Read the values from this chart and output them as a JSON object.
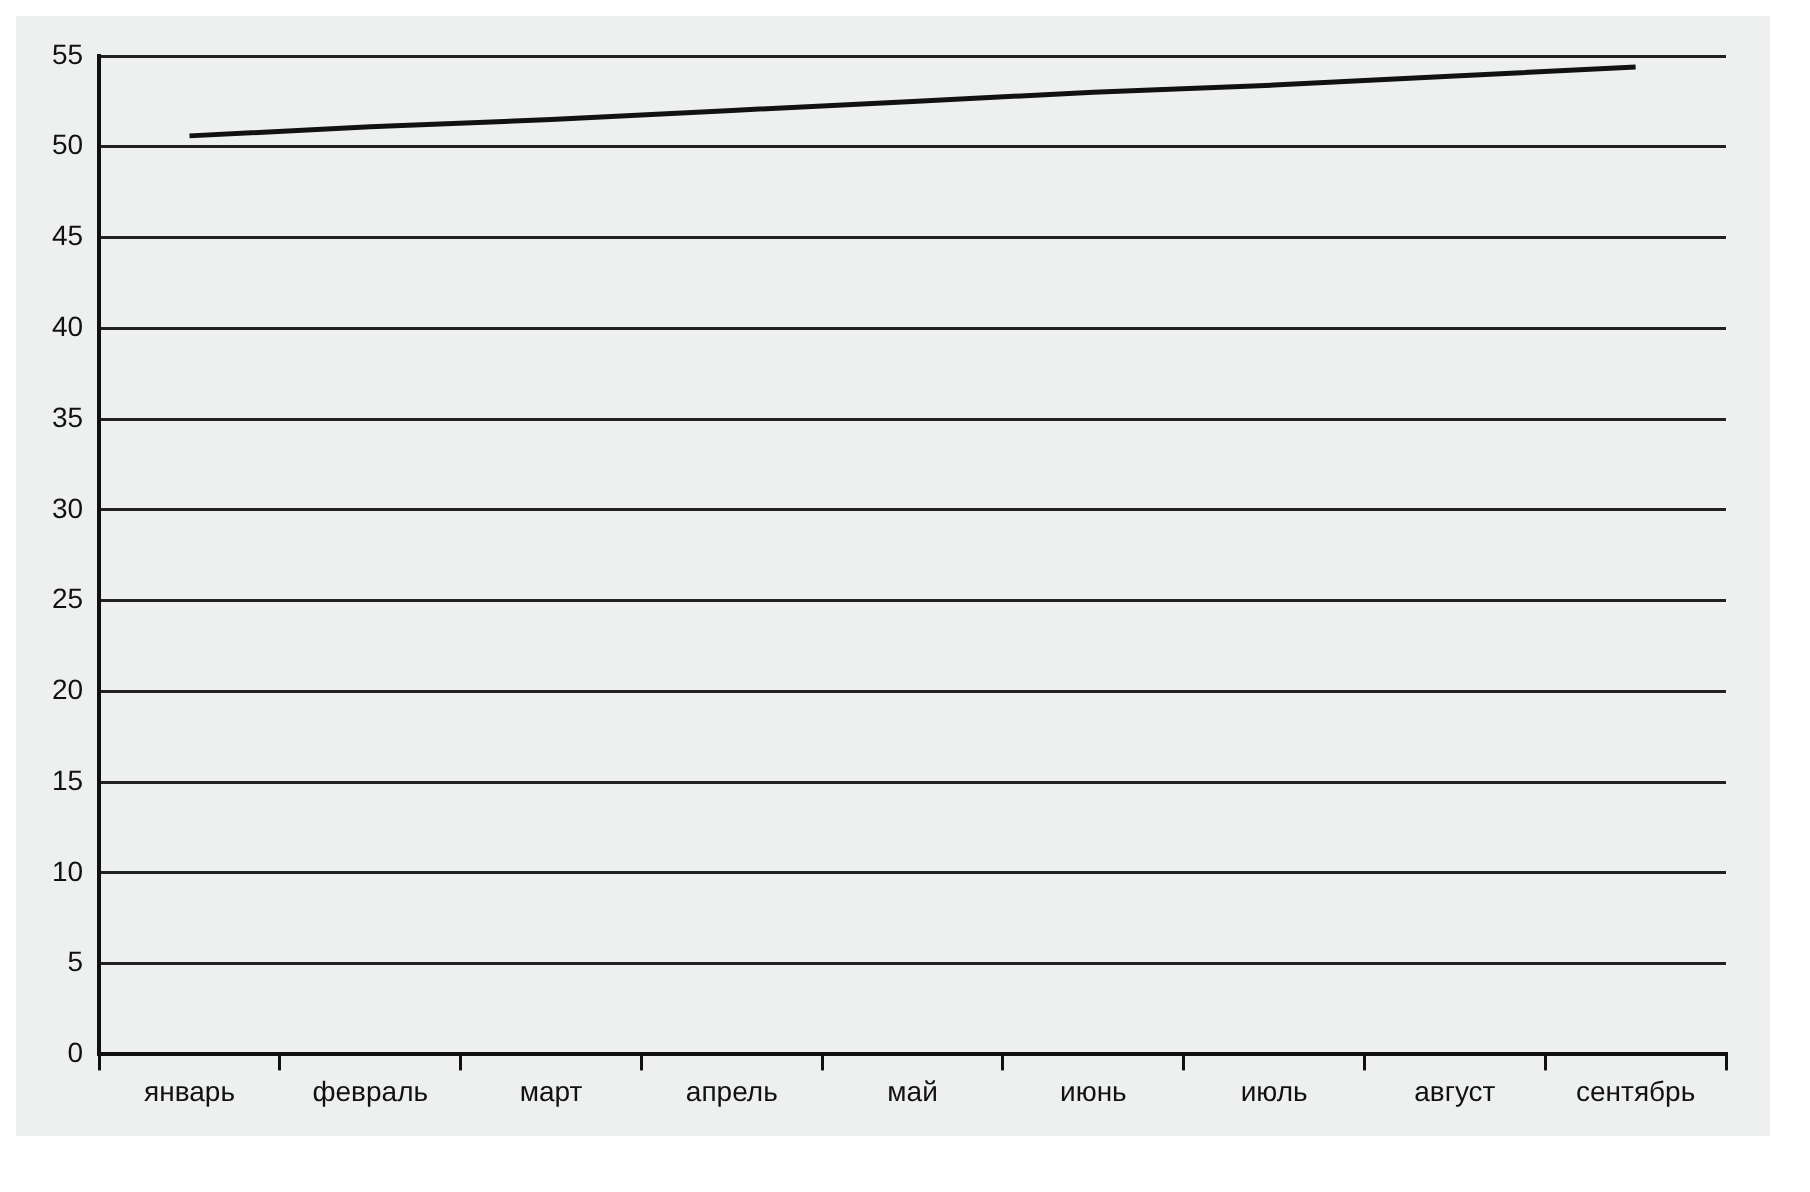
{
  "chart_data": {
    "type": "line",
    "categories": [
      "январь",
      "февраль",
      "март",
      "апрель",
      "май",
      "июнь",
      "июль",
      "август",
      "сентябрь"
    ],
    "series": [
      {
        "color": "#111111",
        "values": [
          50.6,
          51.1,
          51.5,
          52.0,
          52.5,
          53.0,
          53.4,
          53.9,
          54.4
        ]
      }
    ],
    "ylim": [
      0,
      55
    ],
    "yticks": [
      0,
      5,
      10,
      15,
      20,
      25,
      30,
      35,
      40,
      45,
      50,
      55
    ],
    "grid": "y",
    "legend": false,
    "marker": "none",
    "line_style": "solid"
  }
}
